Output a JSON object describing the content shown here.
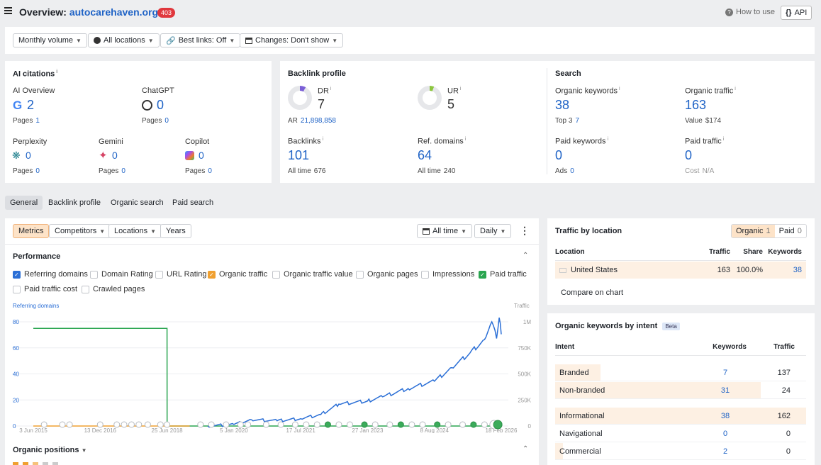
{
  "header": {
    "title_prefix": "Overview:",
    "domain": "autocarehaven.org/",
    "badge": "403",
    "how_to_use": "How to use",
    "api": "API"
  },
  "filters": {
    "volume": "Monthly volume",
    "locations": "All locations",
    "best_links": "Best links: Off",
    "changes": "Changes: Don't show"
  },
  "ai_citations": {
    "title": "AI citations",
    "overview": {
      "label": "AI Overview",
      "value": "2",
      "pages_label": "Pages",
      "pages": "1"
    },
    "chatgpt": {
      "label": "ChatGPT",
      "value": "0",
      "pages_label": "Pages",
      "pages": "0"
    },
    "perplexity": {
      "label": "Perplexity",
      "value": "0",
      "pages_label": "Pages",
      "pages": "0"
    },
    "gemini": {
      "label": "Gemini",
      "value": "0",
      "pages_label": "Pages",
      "pages": "0"
    },
    "copilot": {
      "label": "Copilot",
      "value": "0",
      "pages_label": "Pages",
      "pages": "0"
    }
  },
  "backlink_profile": {
    "title": "Backlink profile",
    "dr": {
      "label": "DR",
      "value": "7"
    },
    "ur": {
      "label": "UR",
      "value": "5"
    },
    "ar": {
      "label": "AR",
      "value": "21,898,858"
    },
    "backlinks": {
      "label": "Backlinks",
      "value": "101",
      "sub_label": "All time",
      "sub": "676"
    },
    "ref_domains": {
      "label": "Ref. domains",
      "value": "64",
      "sub_label": "All time",
      "sub": "240"
    }
  },
  "search": {
    "title": "Search",
    "organic_keywords": {
      "label": "Organic keywords",
      "value": "38",
      "sub_label": "Top 3",
      "sub": "7"
    },
    "organic_traffic": {
      "label": "Organic traffic",
      "value": "163",
      "sub_label": "Value",
      "sub": "$174"
    },
    "paid_keywords": {
      "label": "Paid keywords",
      "value": "0",
      "sub_label": "Ads",
      "sub": "0"
    },
    "paid_traffic": {
      "label": "Paid traffic",
      "value": "0",
      "sub_label": "Cost",
      "sub": "N/A"
    }
  },
  "tabs": [
    "General",
    "Backlink profile",
    "Organic search",
    "Paid search"
  ],
  "chart_toolbar": {
    "metrics": "Metrics",
    "competitors": "Competitors",
    "locations": "Locations",
    "years": "Years",
    "all_time": "All time",
    "daily": "Daily"
  },
  "performance": {
    "title": "Performance",
    "checks": [
      {
        "label": "Referring domains",
        "state": "blue"
      },
      {
        "label": "Domain Rating",
        "state": "off"
      },
      {
        "label": "URL Rating",
        "state": "off"
      },
      {
        "label": "Organic traffic",
        "state": "orange"
      },
      {
        "label": "Organic traffic value",
        "state": "off"
      },
      {
        "label": "Organic pages",
        "state": "off"
      },
      {
        "label": "Impressions",
        "state": "off"
      },
      {
        "label": "Paid traffic",
        "state": "green"
      },
      {
        "label": "Paid traffic cost",
        "state": "off"
      },
      {
        "label": "Crawled pages",
        "state": "off"
      }
    ]
  },
  "chart_data": {
    "type": "line",
    "left_axis_label": "Referring domains",
    "right_axis_label": "Traffic",
    "left_ticks": [
      "80",
      "60",
      "40",
      "20",
      "0"
    ],
    "right_ticks": [
      "1M",
      "750K",
      "500K",
      "250K",
      "0"
    ],
    "x_ticks": [
      "3 Jun 2015",
      "13 Dec 2016",
      "25 Jun 2018",
      "5 Jan 2020",
      "17 Jul 2021",
      "27 Jan 2023",
      "8 Aug 2024",
      "18 Feb 2026"
    ],
    "ylim_left": [
      0,
      80
    ],
    "ylim_right": [
      0,
      1000000
    ],
    "series": [
      {
        "name": "Referring domains",
        "color": "#2aa550",
        "points": [
          [
            "2015-06-03",
            75
          ],
          [
            "2018-06-25",
            75
          ],
          [
            "2018-06-26",
            0
          ],
          [
            "2026-02-18",
            0
          ]
        ]
      },
      {
        "name": "Organic traffic",
        "color": "#f0a030",
        "points": [
          [
            "2015-06-03",
            0
          ],
          [
            "2018-06-25",
            0
          ],
          [
            "2019-01-01",
            0
          ]
        ]
      },
      {
        "name": "Paid traffic",
        "color": "#2b6fd6",
        "points": [
          [
            "2019-06-01",
            0
          ],
          [
            "2020-01-05",
            15000
          ],
          [
            "2020-06-01",
            60000
          ],
          [
            "2021-01-01",
            50000
          ],
          [
            "2021-07-17",
            70000
          ],
          [
            "2022-01-01",
            110000
          ],
          [
            "2022-06-01",
            210000
          ],
          [
            "2023-01-27",
            240000
          ],
          [
            "2023-06-01",
            280000
          ],
          [
            "2024-01-01",
            360000
          ],
          [
            "2024-08-08",
            430000
          ],
          [
            "2025-01-01",
            560000
          ],
          [
            "2025-06-01",
            700000
          ],
          [
            "2025-10-01",
            830000
          ],
          [
            "2025-12-01",
            1000000
          ],
          [
            "2026-01-10",
            840000
          ],
          [
            "2026-02-01",
            1040000
          ],
          [
            "2026-02-18",
            880000
          ]
        ]
      }
    ],
    "grid": true
  },
  "organic_positions": {
    "title": "Organic positions"
  },
  "traffic_by_location": {
    "title": "Traffic by location",
    "organic_label": "Organic",
    "organic_count": "1",
    "paid_label": "Paid",
    "paid_count": "0",
    "columns": [
      "Location",
      "Traffic",
      "Share",
      "Keywords"
    ],
    "rows": [
      {
        "location": "United States",
        "traffic": "163",
        "share": "100.0%",
        "keywords": "38"
      }
    ],
    "compare": "Compare on chart"
  },
  "keywords_by_intent": {
    "title": "Organic keywords by intent",
    "beta": "Beta",
    "columns": [
      "Intent",
      "Keywords",
      "Traffic"
    ],
    "rows": [
      {
        "intent": "Branded",
        "keywords": "7",
        "traffic": "137",
        "share": 0.18
      },
      {
        "intent": "Non-branded",
        "keywords": "31",
        "traffic": "24",
        "share": 0.82
      },
      {
        "intent": "Informational",
        "keywords": "38",
        "traffic": "162",
        "share": 1.0
      },
      {
        "intent": "Navigational",
        "keywords": "0",
        "traffic": "0",
        "share": 0
      },
      {
        "intent": "Commercial",
        "keywords": "2",
        "traffic": "0",
        "share": 0.03
      }
    ]
  }
}
